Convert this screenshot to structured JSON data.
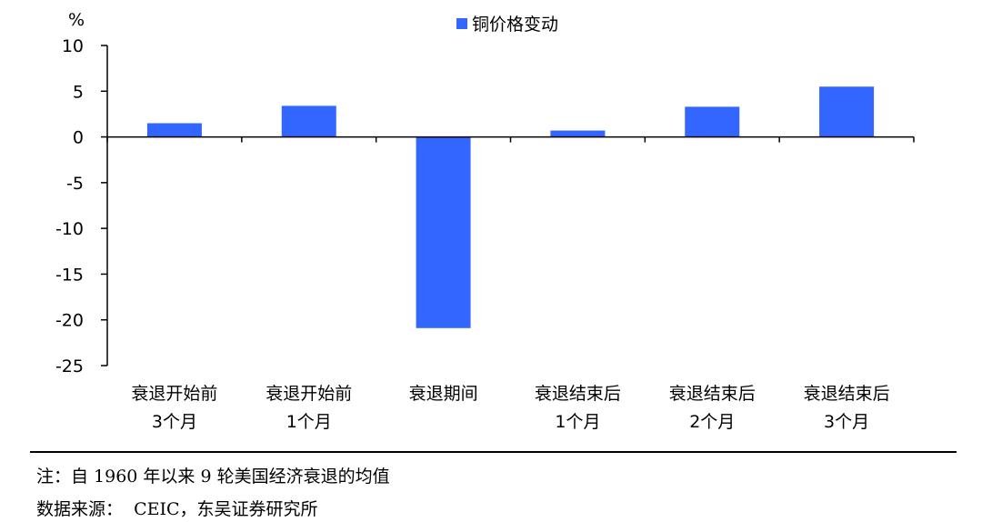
{
  "chart_data": {
    "type": "bar",
    "unit_label": "%",
    "categories": [
      [
        "衰退开始前",
        "3个月"
      ],
      [
        "衰退开始前",
        "1个月"
      ],
      [
        "衰退期间"
      ],
      [
        "衰退结束后",
        "1个月"
      ],
      [
        "衰退结束后",
        "2个月"
      ],
      [
        "衰退结束后",
        "3个月"
      ]
    ],
    "series": [
      {
        "name": "铜价格变动",
        "color": "#3366ff",
        "values": [
          1.5,
          3.4,
          -20.9,
          0.7,
          3.3,
          5.5
        ]
      }
    ],
    "ylim": [
      -25,
      10
    ],
    "yticks": [
      "10",
      "5",
      "0",
      "-5",
      "-10",
      "-15",
      "-20",
      "-25"
    ],
    "grid": false,
    "legend_position": "top-center"
  },
  "notes": {
    "note": "注：自 1960 年以来 9 轮美国经济衰退的均值",
    "source": "数据来源：  CEIC，东吴证券研究所"
  }
}
